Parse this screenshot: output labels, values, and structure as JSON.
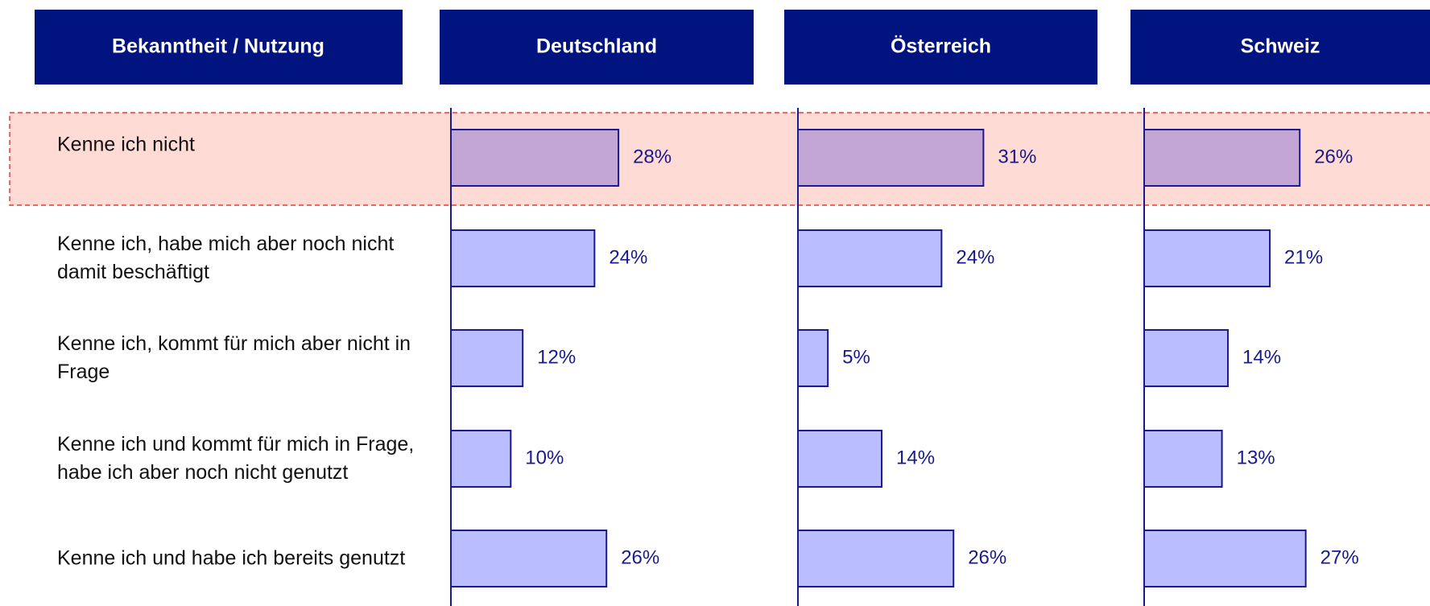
{
  "chart_data": {
    "type": "bar",
    "orientation": "horizontal",
    "category_header": "Bekanntheit / Nutzung",
    "categories": [
      "Kenne ich nicht",
      "Kenne ich, habe mich aber noch nicht damit beschäftigt",
      "Kenne ich, kommt für mich aber nicht in Frage",
      "Kenne ich und kommt für mich in Frage, habe ich aber noch nicht genutzt",
      "Kenne ich und habe ich bereits genutzt"
    ],
    "series": [
      {
        "name": "Deutschland",
        "color": "#babdff",
        "values": [
          28,
          24,
          12,
          10,
          26
        ],
        "value_labels": [
          "28%",
          "24%",
          "12%",
          "10%",
          "26%"
        ]
      },
      {
        "name": "Österreich",
        "color": "#babdff",
        "values": [
          31,
          24,
          5,
          14,
          26
        ],
        "value_labels": [
          "31%",
          "24%",
          "5%",
          "14%",
          "26%"
        ]
      },
      {
        "name": "Schweiz",
        "color": "#babdff",
        "values": [
          26,
          21,
          14,
          13,
          27
        ],
        "value_labels": [
          "26%",
          "21%",
          "14%",
          "13%",
          "27%"
        ]
      }
    ],
    "highlight_color": "#c4a6d6",
    "xlim": [
      0,
      58
    ]
  }
}
